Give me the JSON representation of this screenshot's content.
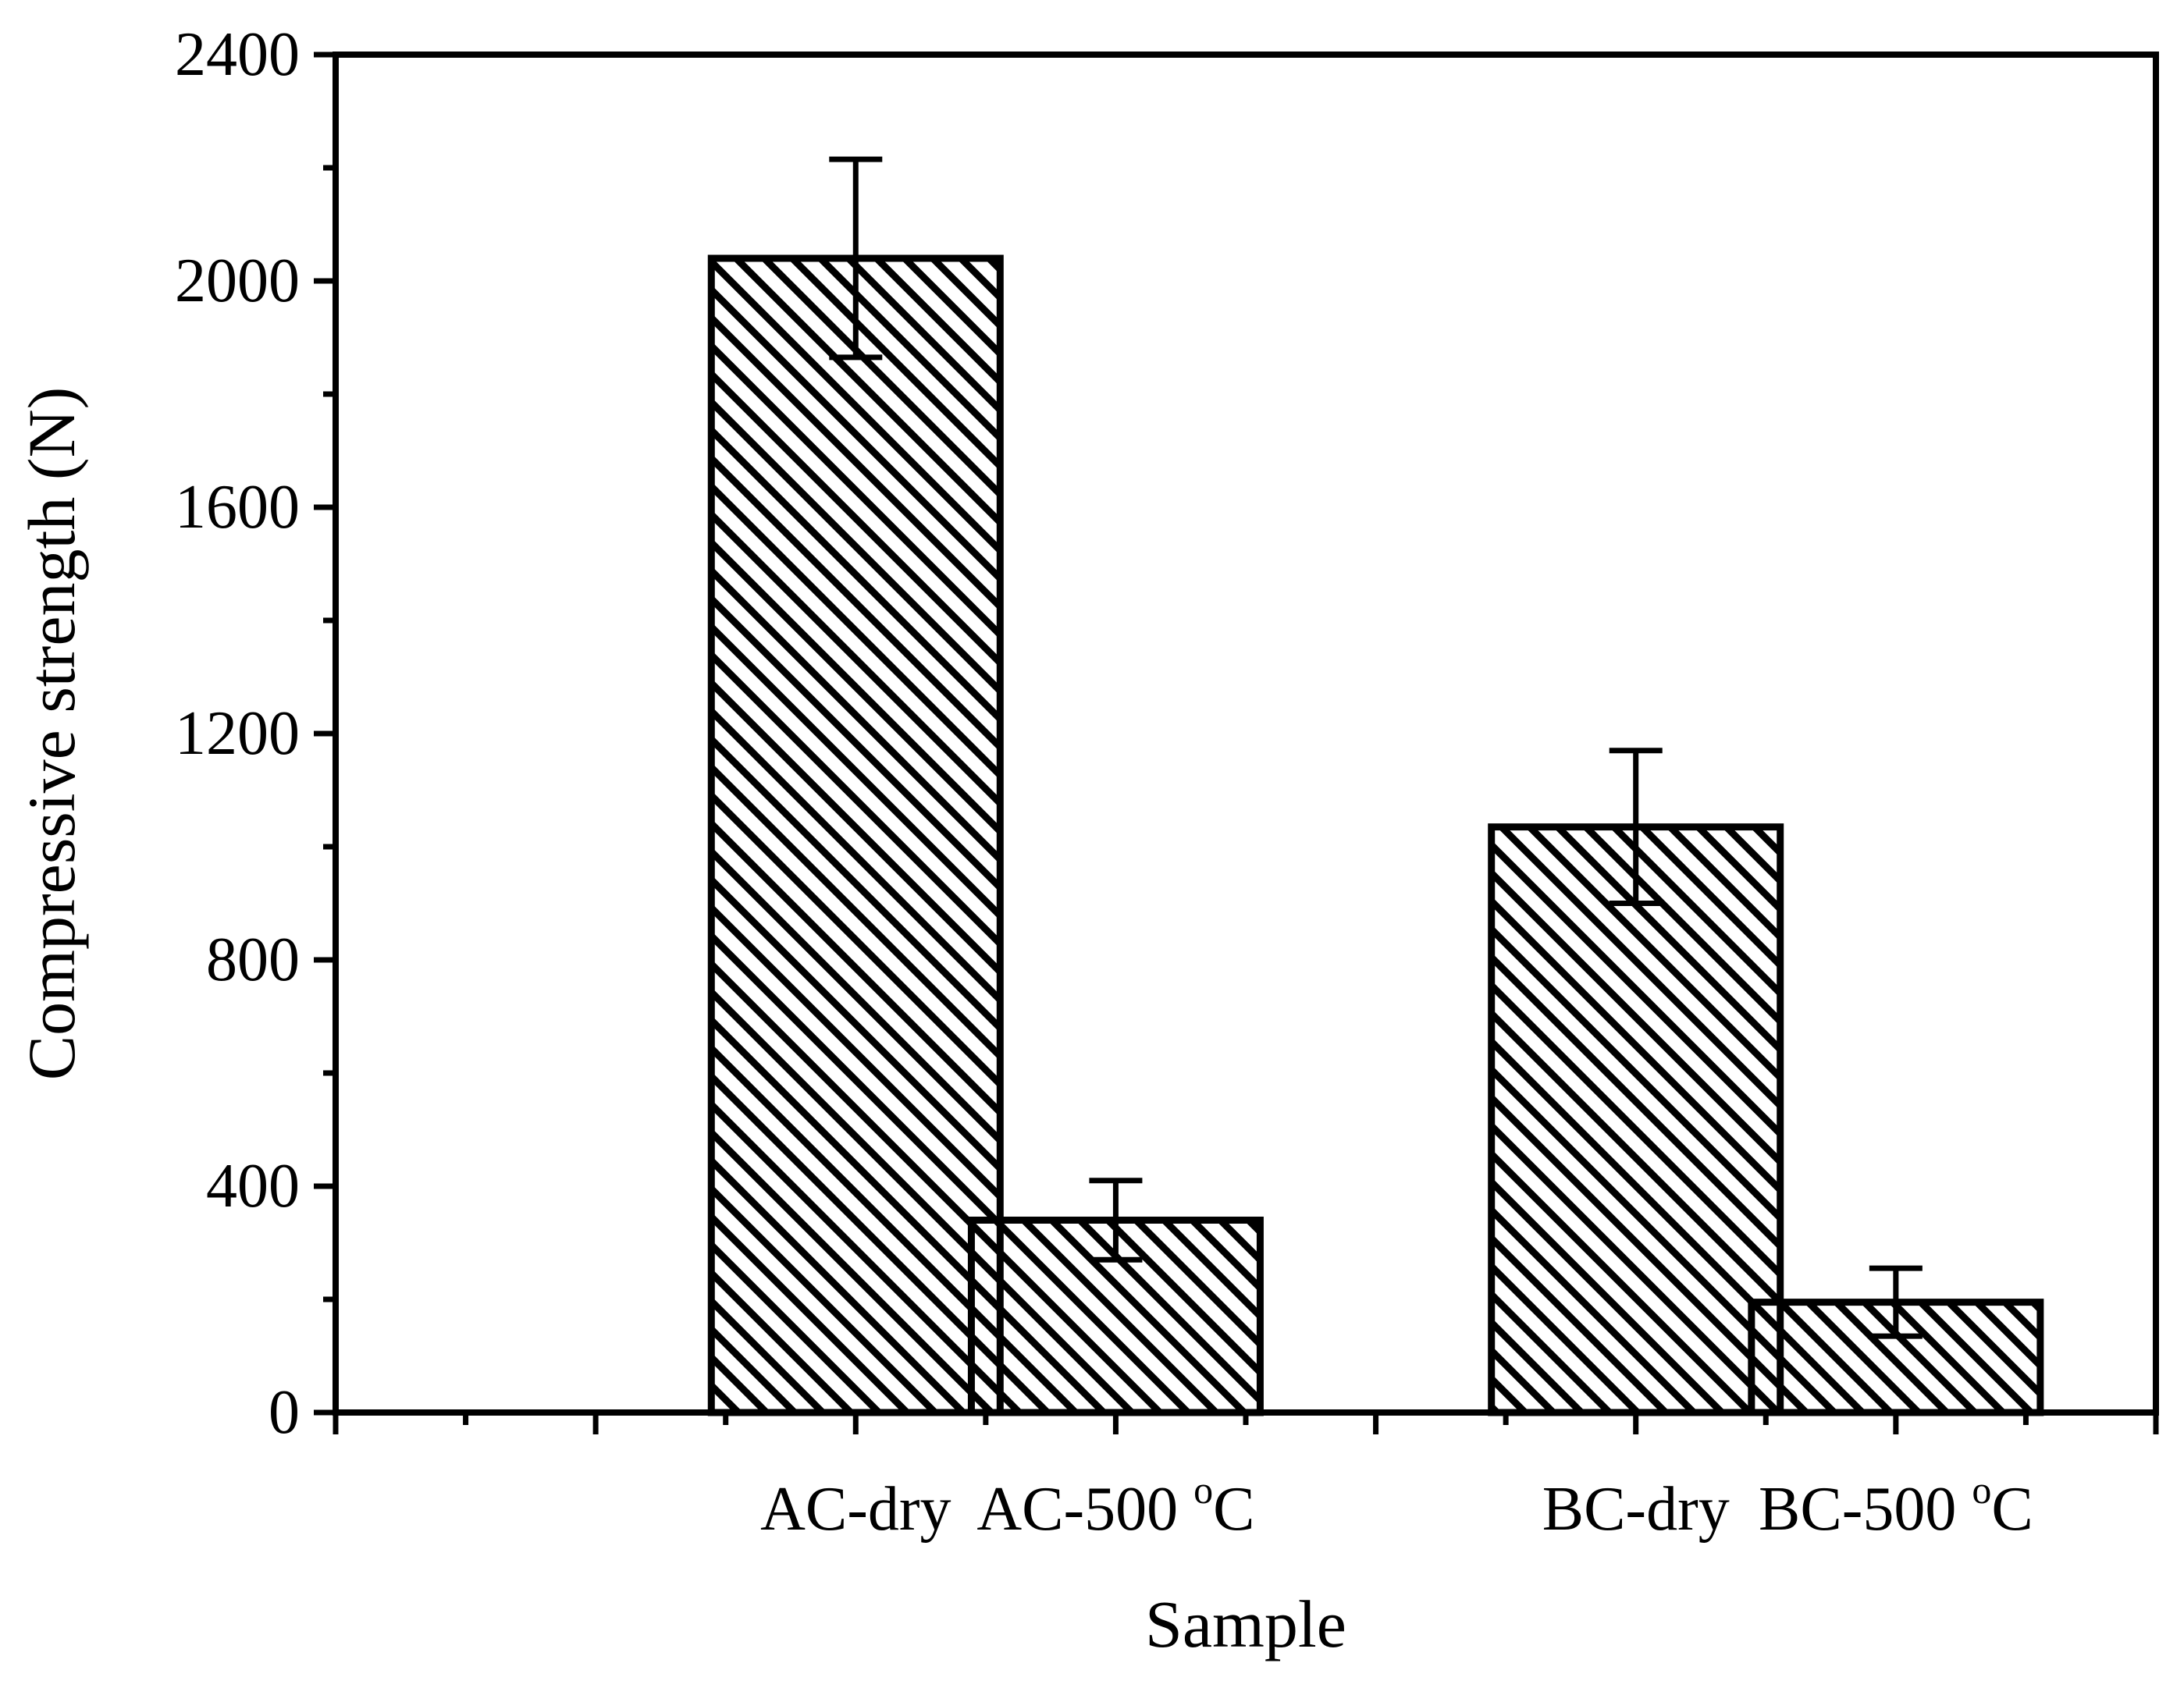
{
  "chart_data": {
    "type": "bar",
    "title": "",
    "xlabel": "Sample",
    "ylabel": "Compressive strength (N)",
    "ylim": [
      0,
      2400
    ],
    "yticks": [
      "0",
      "400",
      "800",
      "1200",
      "1600",
      "2000",
      "2400"
    ],
    "y_tick_values": [
      0,
      400,
      800,
      1200,
      1600,
      2000,
      2400
    ],
    "y_minor_step": 200,
    "grid": false,
    "bar_fill": "diagonal-hatch",
    "colors": {
      "bar_stroke": "#000000",
      "hatch": "#000000",
      "background": "#ffffff"
    },
    "bars": [
      {
        "name": "AC-dry",
        "value": 2040,
        "error": 175,
        "slot": 2
      },
      {
        "name": "AC-500 oC",
        "label_main": "AC-500 ",
        "label_sup": "o",
        "label_end": "C",
        "value": 340,
        "error": 70,
        "slot": 3
      },
      {
        "name": "BC-dry",
        "value": 1035,
        "error": 135,
        "slot": 5
      },
      {
        "name": "BC-500 oC",
        "label_main": "BC-500 ",
        "label_sup": "o",
        "label_end": "C",
        "value": 195,
        "error": 60,
        "slot": 6
      }
    ],
    "x_slot_count": 7
  }
}
